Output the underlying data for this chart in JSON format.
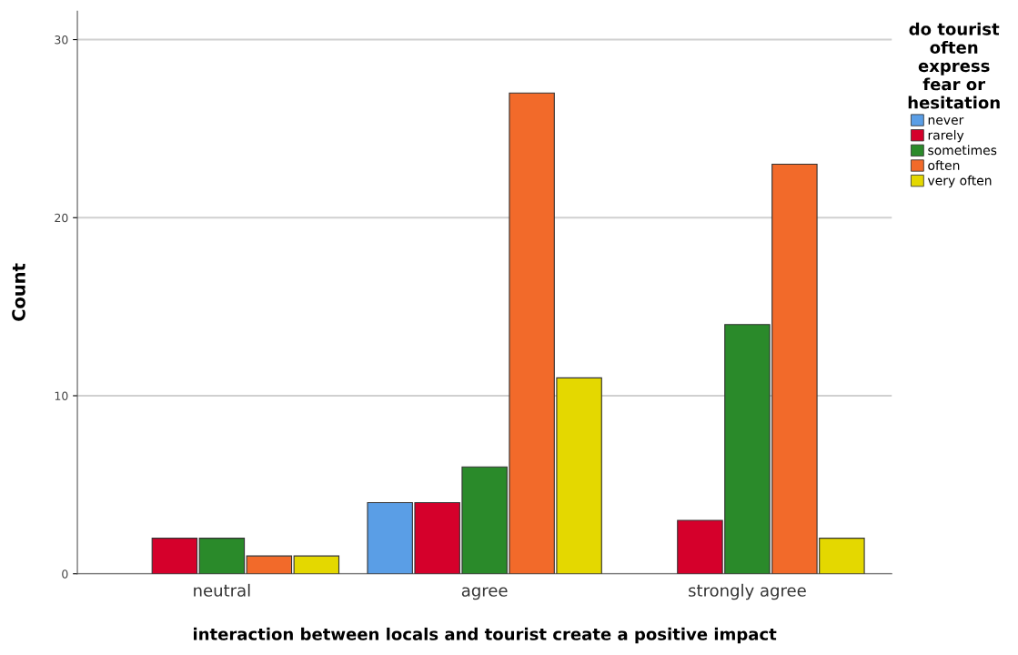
{
  "chart_data": {
    "type": "bar",
    "xlabel": "interaction between locals and tourist create a positive impact",
    "ylabel": "Count",
    "legend_title": "do tourist\noften\nexpress\nfear or\nhesitation",
    "categories": [
      "neutral",
      "agree",
      "strongly agree"
    ],
    "series": [
      {
        "name": "never",
        "color": "#5a9ee6",
        "values": [
          null,
          4,
          null
        ]
      },
      {
        "name": "rarely",
        "color": "#d5002b",
        "values": [
          2,
          4,
          3
        ]
      },
      {
        "name": "sometimes",
        "color": "#2a8a2a",
        "values": [
          2,
          6,
          14
        ]
      },
      {
        "name": "often",
        "color": "#f26a2a",
        "values": [
          1,
          27,
          23
        ]
      },
      {
        "name": "very often",
        "color": "#e4d800",
        "values": [
          1,
          11,
          2
        ]
      }
    ],
    "ylim": [
      0,
      31.6
    ],
    "yticks": [
      0,
      10,
      20,
      30
    ],
    "grid": "y",
    "legend": "top right"
  }
}
